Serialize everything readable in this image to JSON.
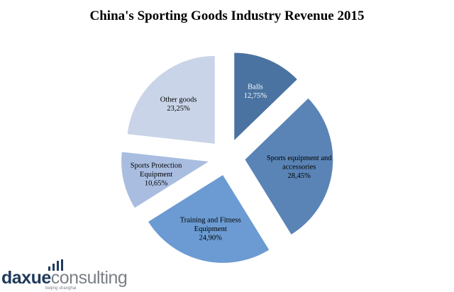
{
  "chart_data": {
    "type": "pie",
    "title": "China's Sporting Goods Industry Revenue 2015",
    "slices": [
      {
        "label_lines": [
          "Balls",
          "12,75%"
        ],
        "value": 12.75,
        "color": "#4a73a1",
        "text_color": "#ffffff"
      },
      {
        "label_lines": [
          "Sports equipment and",
          "accessories",
          "28,45%"
        ],
        "value": 28.45,
        "color": "#5a84b6",
        "text_color": "#000000"
      },
      {
        "label_lines": [
          "Training and Fitness",
          "Equipment",
          "24,90%"
        ],
        "value": 24.9,
        "color": "#6b9bd2",
        "text_color": "#000000"
      },
      {
        "label_lines": [
          "Sports Protection",
          "Equipment",
          "10,65%"
        ],
        "value": 10.65,
        "color": "#a9bde0",
        "text_color": "#000000"
      },
      {
        "label_lines": [
          "Other goods",
          "23,25%"
        ],
        "value": 23.25,
        "color": "#c9d4e8",
        "text_color": "#000000"
      }
    ],
    "start_angle_deg": 0,
    "direction": "clockwise",
    "exploded": true,
    "legend": "none"
  },
  "logo": {
    "text_daxue": "daxue",
    "text_consulting": "consulting",
    "subtext": "beijing shanghai"
  }
}
